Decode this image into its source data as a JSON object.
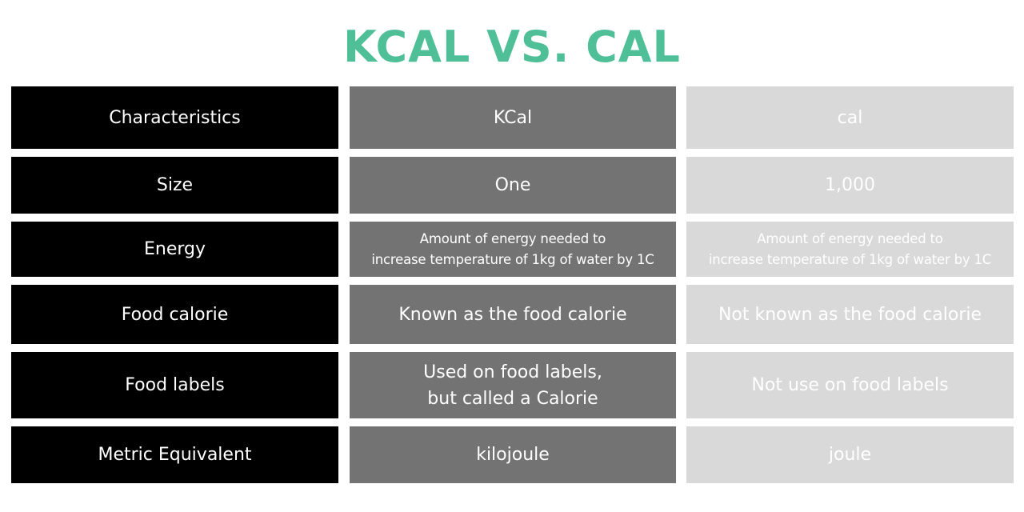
{
  "title": "KCAL VS. CAL",
  "table": {
    "header": {
      "characteristics": "Characteristics",
      "kcal": "KCal",
      "cal": "cal"
    },
    "rows": [
      {
        "label": "Size",
        "kcal": "One",
        "cal": "1,000"
      },
      {
        "label": "Energy",
        "kcal": "Amount of energy needed to\nincrease temperature of 1kg of water by 1C",
        "cal": "Amount of energy needed to\nincrease temperature of 1kg of water by 1C"
      },
      {
        "label": "Food calorie",
        "kcal": "Known as the food calorie",
        "cal": "Not known as the food calorie"
      },
      {
        "label": "Food labels",
        "kcal": "Used on food labels,\nbut called a Calorie",
        "cal": "Not use on food labels"
      },
      {
        "label": "Metric Equivalent",
        "kcal": "kilojoule",
        "cal": "joule"
      }
    ]
  },
  "colors": {
    "title": "#4fbf98",
    "col_characteristics": "#000000",
    "col_kcal": "#737373",
    "col_cal": "#d9d9d9"
  }
}
